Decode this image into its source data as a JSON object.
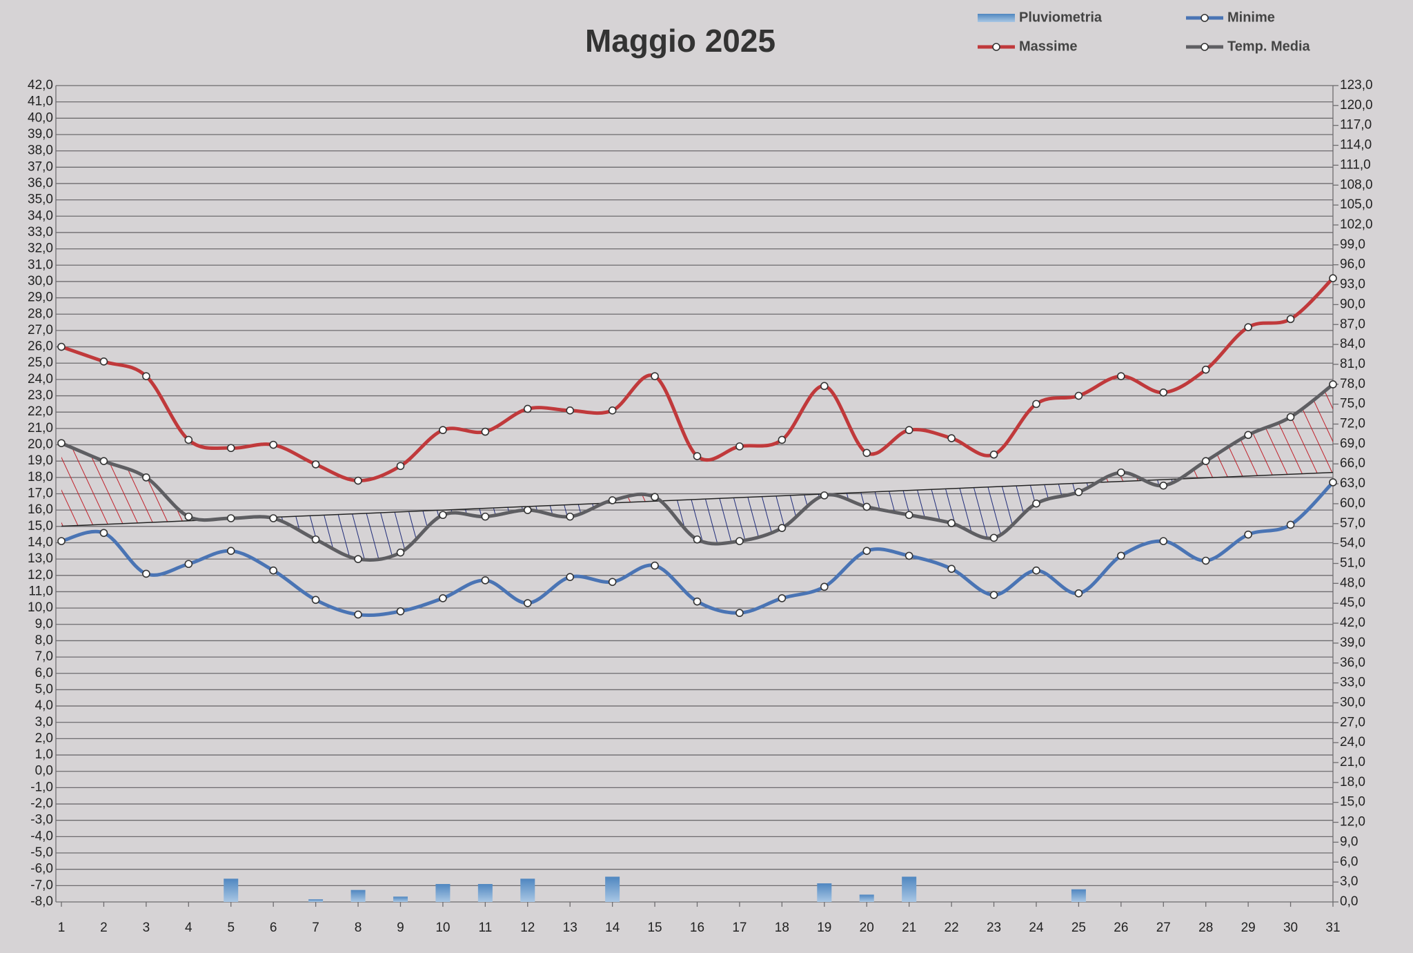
{
  "chart_data": {
    "type": "combo",
    "title": "Maggio 2025",
    "categories": [
      "1",
      "2",
      "3",
      "4",
      "5",
      "6",
      "7",
      "8",
      "9",
      "10",
      "11",
      "12",
      "13",
      "14",
      "15",
      "16",
      "17",
      "18",
      "19",
      "20",
      "21",
      "22",
      "23",
      "24",
      "25",
      "26",
      "27",
      "28",
      "29",
      "30",
      "31"
    ],
    "series": [
      {
        "name": "Pluviometria",
        "type": "bar",
        "axis": "y2",
        "color": "#5b8fc4",
        "values": [
          0,
          0,
          0,
          0,
          3.5,
          0,
          0.4,
          1.8,
          0.8,
          2.7,
          2.7,
          3.5,
          0,
          3.8,
          0,
          0,
          0,
          0,
          2.8,
          1.1,
          3.8,
          0,
          0,
          0,
          1.9,
          0,
          0,
          0,
          0,
          0,
          0
        ]
      },
      {
        "name": "Minime",
        "type": "line",
        "color": "#4a74b4",
        "values": [
          14.1,
          14.6,
          12.1,
          12.7,
          13.5,
          12.3,
          10.5,
          9.6,
          9.8,
          10.6,
          11.7,
          10.3,
          11.9,
          11.6,
          12.6,
          10.4,
          9.7,
          10.6,
          11.3,
          13.5,
          13.2,
          12.4,
          10.8,
          12.3,
          10.9,
          13.2,
          14.1,
          12.9,
          14.5,
          15.1,
          17.7
        ]
      },
      {
        "name": "Massime",
        "type": "line",
        "color": "#c0393b",
        "values": [
          26.0,
          25.1,
          24.2,
          20.3,
          19.8,
          20.0,
          18.8,
          17.8,
          18.7,
          20.9,
          20.8,
          22.2,
          22.1,
          22.1,
          24.2,
          19.3,
          19.9,
          20.3,
          23.6,
          19.5,
          20.9,
          20.4,
          19.4,
          22.5,
          23.0,
          24.2,
          23.2,
          24.6,
          27.2,
          27.7,
          30.2
        ]
      },
      {
        "name": "Temp. Media",
        "type": "line",
        "color": "#5e5e62",
        "values": [
          20.1,
          19.0,
          18.0,
          15.6,
          15.5,
          15.5,
          14.2,
          13.0,
          13.4,
          15.7,
          15.6,
          16.0,
          15.6,
          16.6,
          16.8,
          14.2,
          14.1,
          14.9,
          16.9,
          16.2,
          15.7,
          15.2,
          14.3,
          16.4,
          17.1,
          18.3,
          17.5,
          19.0,
          20.6,
          21.7,
          23.7
        ]
      }
    ],
    "ylim": [
      -8,
      42
    ],
    "yticks": [
      {
        "value": -8,
        "label": "-8,0"
      },
      {
        "value": -7,
        "label": "-7,0"
      },
      {
        "value": -6,
        "label": "-6,0"
      },
      {
        "value": -5,
        "label": "-5,0"
      },
      {
        "value": -4,
        "label": "-4,0"
      },
      {
        "value": -3,
        "label": "-3,0"
      },
      {
        "value": -2,
        "label": "-2,0"
      },
      {
        "value": -1,
        "label": "-1,0"
      },
      {
        "value": 0,
        "label": "0,0"
      },
      {
        "value": 1,
        "label": "1,0"
      },
      {
        "value": 2,
        "label": "2,0"
      },
      {
        "value": 3,
        "label": "3,0"
      },
      {
        "value": 4,
        "label": "4,0"
      },
      {
        "value": 5,
        "label": "5,0"
      },
      {
        "value": 6,
        "label": "6,0"
      },
      {
        "value": 7,
        "label": "7,0"
      },
      {
        "value": 8,
        "label": "8,0"
      },
      {
        "value": 9,
        "label": "9,0"
      },
      {
        "value": 10,
        "label": "10,0"
      },
      {
        "value": 11,
        "label": "11,0"
      },
      {
        "value": 12,
        "label": "12,0"
      },
      {
        "value": 13,
        "label": "13,0"
      },
      {
        "value": 14,
        "label": "14,0"
      },
      {
        "value": 15,
        "label": "15,0"
      },
      {
        "value": 16,
        "label": "16,0"
      },
      {
        "value": 17,
        "label": "17,0"
      },
      {
        "value": 18,
        "label": "18,0"
      },
      {
        "value": 19,
        "label": "19,0"
      },
      {
        "value": 20,
        "label": "20,0"
      },
      {
        "value": 21,
        "label": "21,0"
      },
      {
        "value": 22,
        "label": "22,0"
      },
      {
        "value": 23,
        "label": "23,0"
      },
      {
        "value": 24,
        "label": "24,0"
      },
      {
        "value": 25,
        "label": "25,0"
      },
      {
        "value": 26,
        "label": "26,0"
      },
      {
        "value": 27,
        "label": "27,0"
      },
      {
        "value": 28,
        "label": "28,0"
      },
      {
        "value": 29,
        "label": "29,0"
      },
      {
        "value": 30,
        "label": "30,0"
      },
      {
        "value": 31,
        "label": "31,0"
      },
      {
        "value": 32,
        "label": "32,0"
      },
      {
        "value": 33,
        "label": "33,0"
      },
      {
        "value": 34,
        "label": "34,0"
      },
      {
        "value": 35,
        "label": "35,0"
      },
      {
        "value": 36,
        "label": "36,0"
      },
      {
        "value": 37,
        "label": "37,0"
      },
      {
        "value": 38,
        "label": "38,0"
      },
      {
        "value": 39,
        "label": "39,0"
      },
      {
        "value": 40,
        "label": "40,0"
      },
      {
        "value": 41,
        "label": "41,0"
      },
      {
        "value": 42,
        "label": "42,0"
      }
    ],
    "y2lim": [
      0,
      123
    ],
    "y2ticks": [
      {
        "value": 0,
        "label": "0,0"
      },
      {
        "value": 3,
        "label": "3,0"
      },
      {
        "value": 6,
        "label": "6,0"
      },
      {
        "value": 9,
        "label": "9,0"
      },
      {
        "value": 12,
        "label": "12,0"
      },
      {
        "value": 15,
        "label": "15,0"
      },
      {
        "value": 18,
        "label": "18,0"
      },
      {
        "value": 21,
        "label": "21,0"
      },
      {
        "value": 24,
        "label": "24,0"
      },
      {
        "value": 27,
        "label": "27,0"
      },
      {
        "value": 30,
        "label": "30,0"
      },
      {
        "value": 33,
        "label": "33,0"
      },
      {
        "value": 36,
        "label": "36,0"
      },
      {
        "value": 39,
        "label": "39,0"
      },
      {
        "value": 42,
        "label": "42,0"
      },
      {
        "value": 45,
        "label": "45,0"
      },
      {
        "value": 48,
        "label": "48,0"
      },
      {
        "value": 51,
        "label": "51,0"
      },
      {
        "value": 54,
        "label": "54,0"
      },
      {
        "value": 57,
        "label": "57,0"
      },
      {
        "value": 60,
        "label": "60,0"
      },
      {
        "value": 63,
        "label": "63,0"
      },
      {
        "value": 66,
        "label": "66,0"
      },
      {
        "value": 69,
        "label": "69,0"
      },
      {
        "value": 72,
        "label": "72,0"
      },
      {
        "value": 75,
        "label": "75,0"
      },
      {
        "value": 78,
        "label": "78,0"
      },
      {
        "value": 81,
        "label": "81,0"
      },
      {
        "value": 84,
        "label": "84,0"
      },
      {
        "value": 87,
        "label": "87,0"
      },
      {
        "value": 90,
        "label": "90,0"
      },
      {
        "value": 93,
        "label": "93,0"
      },
      {
        "value": 96,
        "label": "96,0"
      },
      {
        "value": 99,
        "label": "99,0"
      },
      {
        "value": 102,
        "label": "102,0"
      },
      {
        "value": 105,
        "label": "105,0"
      },
      {
        "value": 108,
        "label": "108,0"
      },
      {
        "value": 111,
        "label": "111,0"
      },
      {
        "value": 114,
        "label": "114,0"
      },
      {
        "value": 117,
        "label": "117,0"
      },
      {
        "value": 120,
        "label": "120,0"
      },
      {
        "value": 123,
        "label": "123,0"
      }
    ],
    "grid": true,
    "legend": "top-right"
  }
}
